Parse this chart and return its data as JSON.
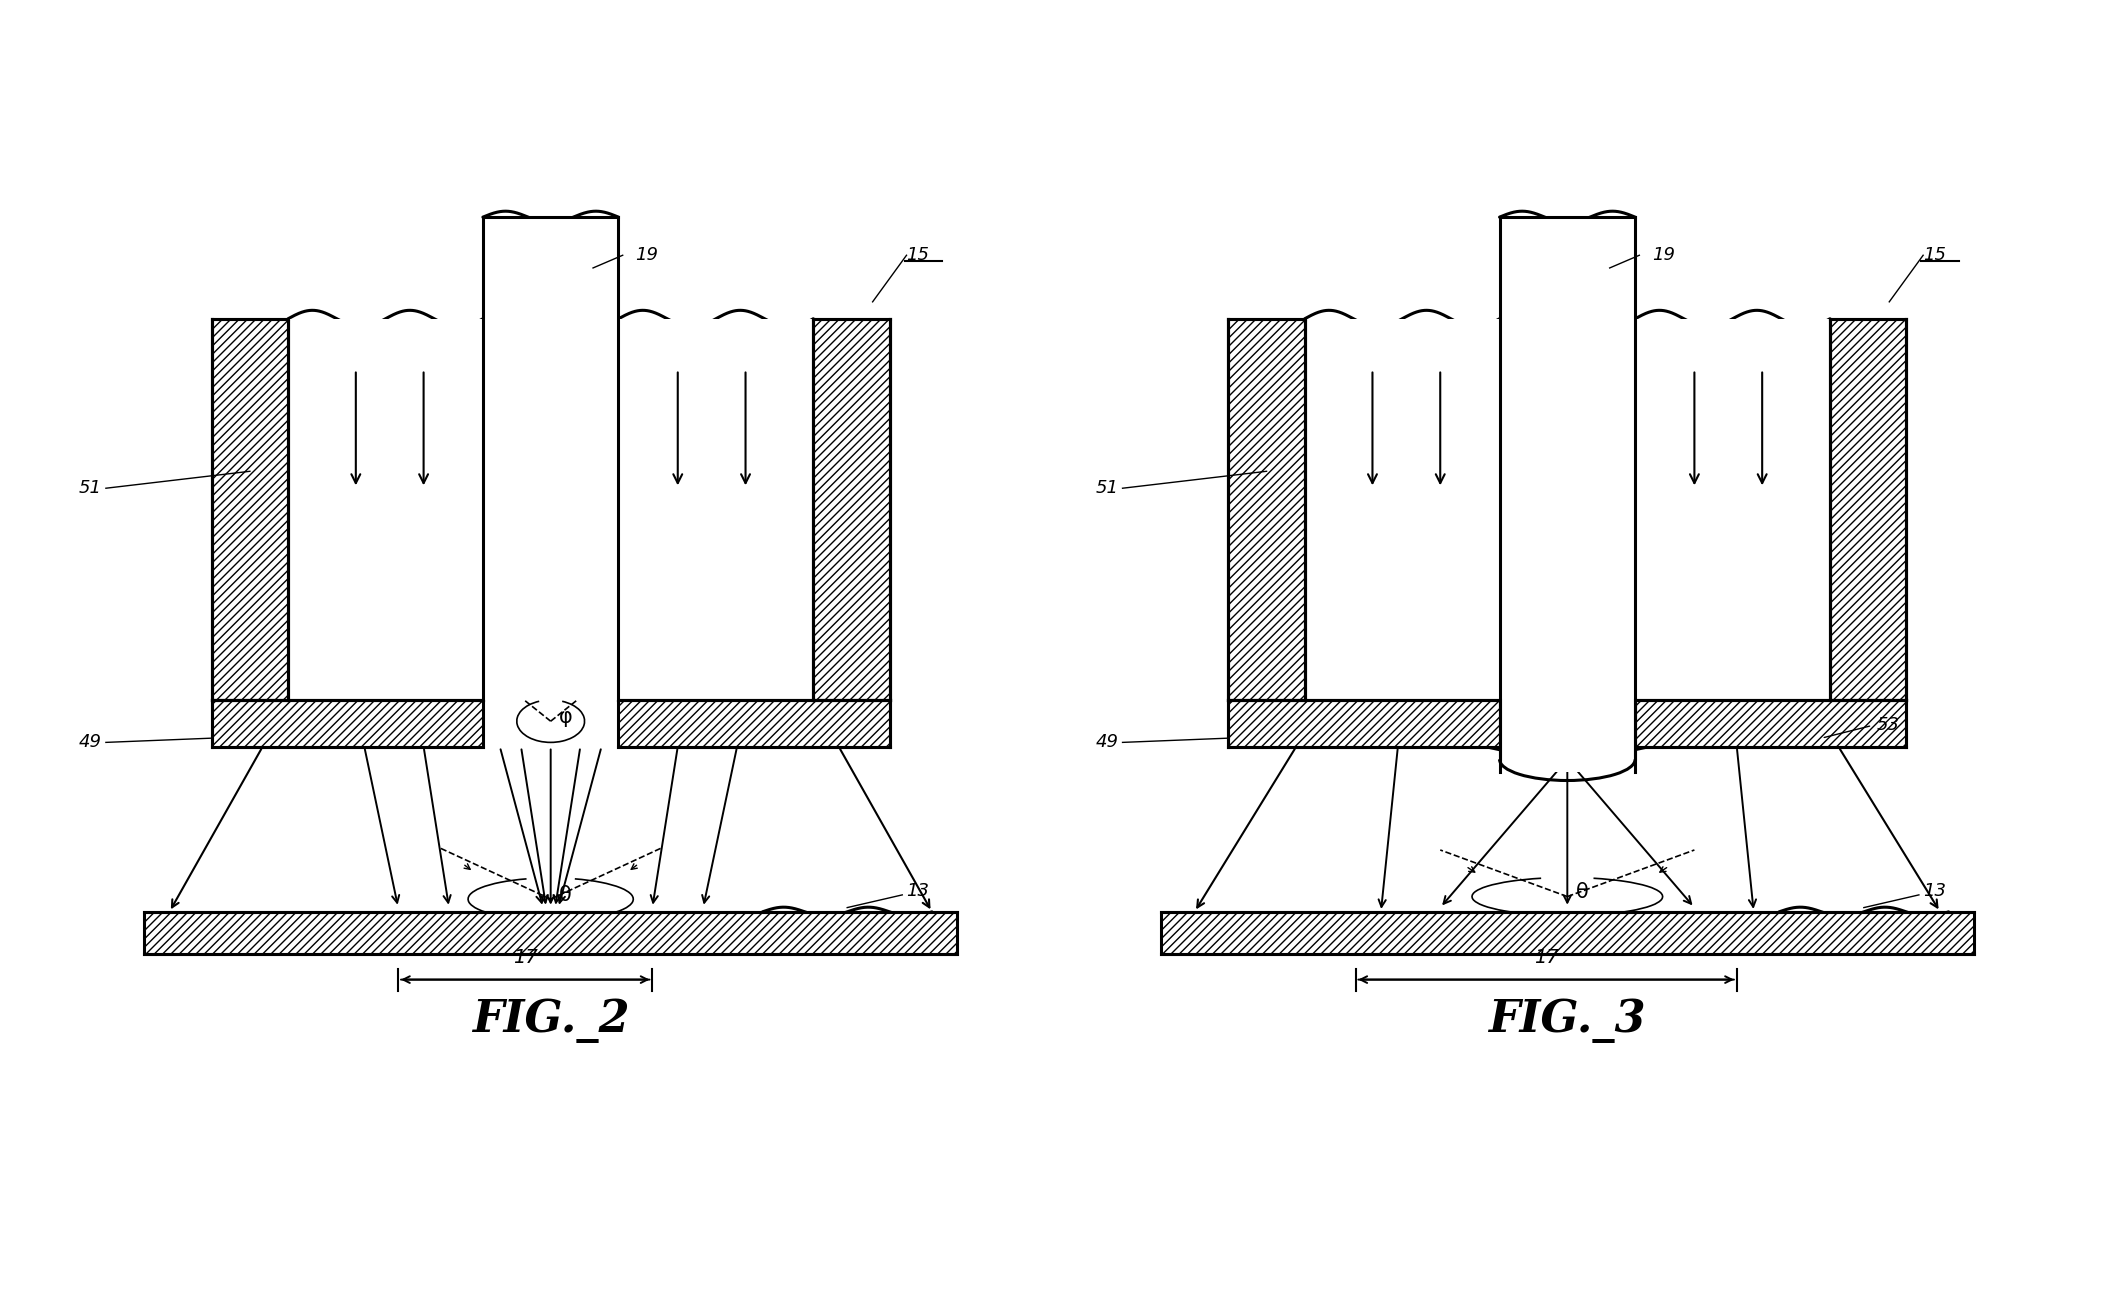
{
  "fig_width": 21.18,
  "fig_height": 13.1,
  "dpi": 100,
  "bg_color": "#ffffff",
  "phi": "φ",
  "theta": "θ",
  "fig2_label": "FIG._2",
  "fig3_label": "FIG._3"
}
